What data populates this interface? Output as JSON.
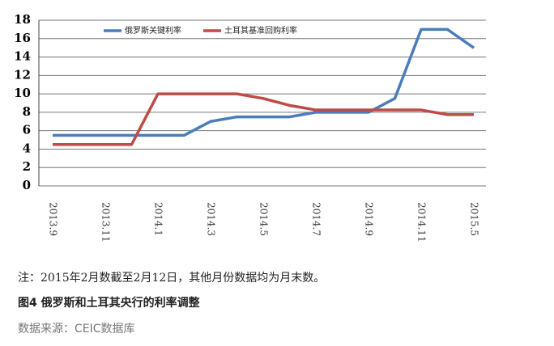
{
  "chart_data": {
    "type": "line",
    "categories": [
      "2013.9",
      null,
      "2013.11",
      null,
      "2014.1",
      null,
      "2014.3",
      null,
      "2014.5",
      null,
      "2014.7",
      null,
      "2014.9",
      null,
      "2014.11",
      null,
      "2015.5"
    ],
    "series": [
      {
        "name": "俄罗斯关键利率",
        "color": "#4a7ebb",
        "values": [
          5.5,
          5.5,
          5.5,
          5.5,
          5.5,
          5.5,
          7,
          7.5,
          7.5,
          7.5,
          8,
          8,
          8,
          9.5,
          17,
          17,
          15
        ]
      },
      {
        "name": "土耳其基准回购利率",
        "color": "#be4b48",
        "values": [
          4.5,
          4.5,
          4.5,
          4.5,
          10,
          10,
          10,
          10,
          9.5,
          8.75,
          8.25,
          8.25,
          8.25,
          8.25,
          8.25,
          7.75,
          7.75
        ]
      }
    ],
    "ylim": [
      0,
      18
    ],
    "yticks": [
      0,
      2,
      4,
      6,
      8,
      10,
      12,
      14,
      16,
      18
    ],
    "grid": true
  },
  "note": "注：2015年2月数截至2月12日，其他月份数据均为月末数。",
  "caption": "图4 俄罗斯和土耳其央行的利率调整",
  "source": "数据来源：CEIC数据库"
}
